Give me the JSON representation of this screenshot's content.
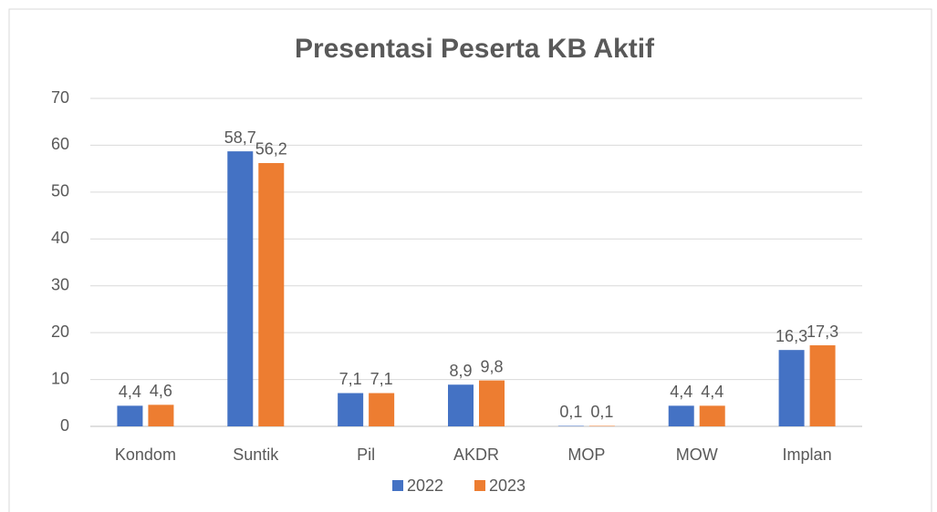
{
  "chart_data": {
    "type": "bar",
    "title": "Presentasi Peserta KB Aktif",
    "categories": [
      "Kondom",
      "Suntik",
      "Pil",
      "AKDR",
      "MOP",
      "MOW",
      "Implan"
    ],
    "series": [
      {
        "name": "2022",
        "color": "#4472c4",
        "values": [
          4.4,
          58.7,
          7.1,
          8.9,
          0.1,
          4.4,
          16.3
        ],
        "value_labels": [
          "4,4",
          "58,7",
          "7,1",
          "8,9",
          "0,1",
          "4,4",
          "16,3"
        ]
      },
      {
        "name": "2023",
        "color": "#ed7d31",
        "values": [
          4.6,
          56.2,
          7.1,
          9.8,
          0.1,
          4.4,
          17.3
        ],
        "value_labels": [
          "4,6",
          "56,2",
          "7,1",
          "9,8",
          "0,1",
          "4,4",
          "17,3"
        ]
      }
    ],
    "ylim": [
      0,
      70
    ],
    "yticks": [
      0,
      10,
      20,
      30,
      40,
      50,
      60,
      70
    ],
    "grid": true,
    "legend": "bottom"
  }
}
